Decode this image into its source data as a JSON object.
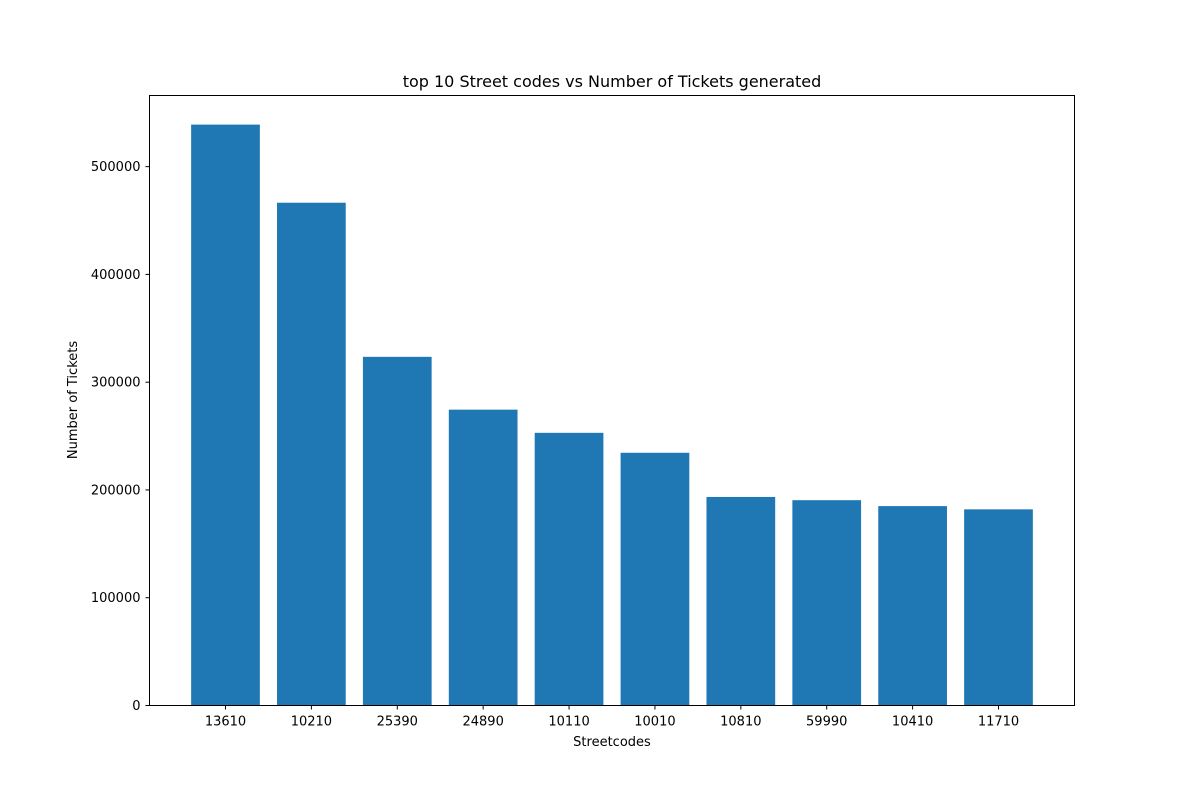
{
  "chart_data": {
    "type": "bar",
    "title": "top 10 Street codes vs  Number of Tickets generated",
    "xlabel": "Streetcodes",
    "ylabel": "Number of Tickets",
    "categories": [
      "13610",
      "10210",
      "25390",
      "24890",
      "10110",
      "10010",
      "10810",
      "59990",
      "10410",
      "11710"
    ],
    "values": [
      539000,
      466500,
      323500,
      274500,
      253000,
      234500,
      193500,
      190500,
      185000,
      182000
    ],
    "ylim": [
      0,
      566000
    ],
    "yticks": [
      0,
      100000,
      200000,
      300000,
      400000,
      500000
    ],
    "ytick_labels": [
      "0",
      "100000",
      "200000",
      "300000",
      "400000",
      "500000"
    ],
    "grid": false,
    "legend": "none",
    "bar_color": "#1f77b4"
  }
}
